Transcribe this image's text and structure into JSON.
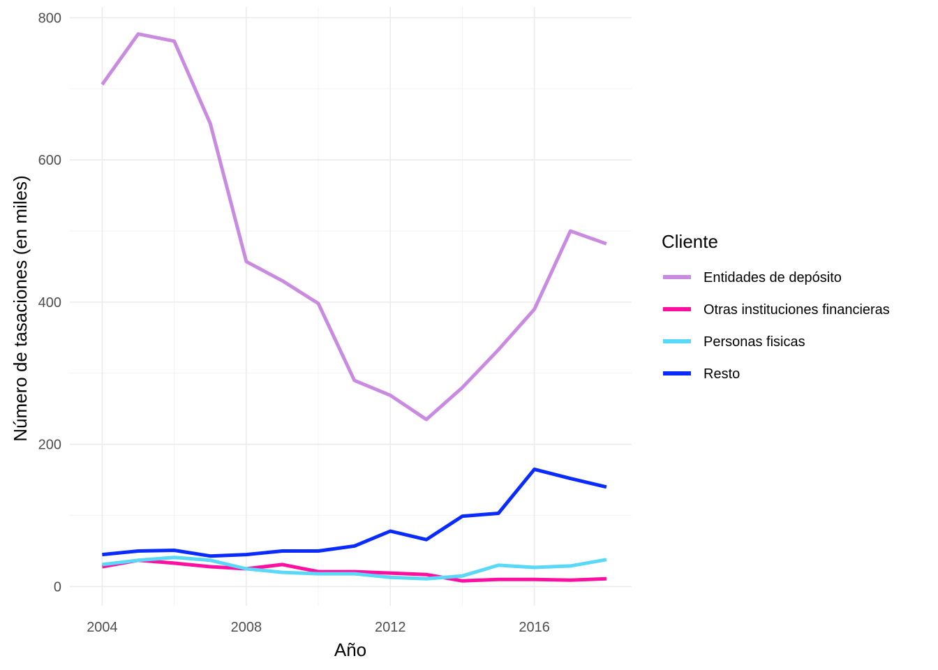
{
  "chart_data": {
    "type": "line",
    "title": "",
    "xlabel": "Año",
    "ylabel": "Número de tasaciones (en miles)",
    "x": [
      2004,
      2005,
      2006,
      2007,
      2008,
      2009,
      2010,
      2011,
      2012,
      2013,
      2014,
      2015,
      2016,
      2017,
      2018
    ],
    "xlim": [
      2003.1,
      2018.7
    ],
    "ylim": [
      -27,
      815
    ],
    "x_ticks": [
      2004,
      2008,
      2012,
      2016
    ],
    "y_ticks": [
      0,
      200,
      400,
      600,
      800
    ],
    "x_tick_labels": [
      "2004",
      "2008",
      "2012",
      "2016"
    ],
    "y_tick_labels": [
      "0",
      "200",
      "400",
      "600",
      "800"
    ],
    "grid": true,
    "legend_position": "right",
    "legend_title": "Cliente",
    "series": [
      {
        "name": "Entidades de depósito",
        "color": "#C98BE0",
        "values": [
          706,
          777,
          767,
          651,
          457,
          430,
          398,
          290,
          269,
          235,
          280,
          333,
          390,
          500,
          482
        ]
      },
      {
        "name": "Otras instituciones financieras",
        "color": "#FF0FA0",
        "values": [
          28,
          37,
          33,
          28,
          25,
          31,
          21,
          21,
          19,
          17,
          8,
          10,
          10,
          9,
          11
        ]
      },
      {
        "name": "Personas fisicas",
        "color": "#5AD8F8",
        "values": [
          31,
          37,
          41,
          37,
          25,
          20,
          18,
          18,
          13,
          11,
          15,
          30,
          27,
          29,
          38
        ]
      },
      {
        "name": "Resto",
        "color": "#0A2BFF",
        "values": [
          45,
          50,
          51,
          43,
          45,
          50,
          50,
          57,
          78,
          66,
          99,
          103,
          165,
          152,
          140
        ]
      }
    ]
  }
}
